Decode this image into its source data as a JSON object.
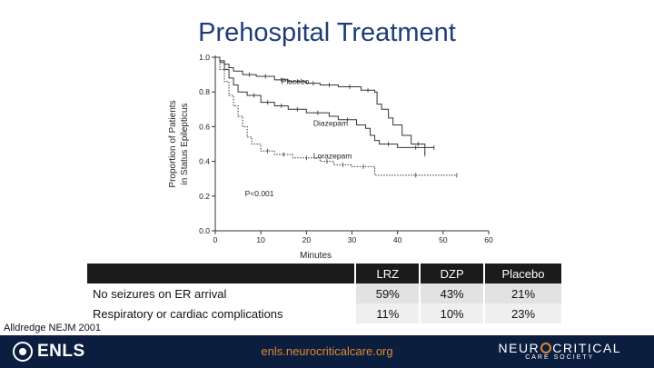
{
  "slide": {
    "title": "Prehospital Treatment"
  },
  "chart_data": {
    "type": "line",
    "subtype": "kaplan-meier",
    "xlabel": "Minutes",
    "ylabel_lines": [
      "Proportion of Patients",
      "in Status Epilepticus"
    ],
    "xlim": [
      0,
      60
    ],
    "ylim": [
      0,
      1.0
    ],
    "x_ticks": [
      0,
      10,
      20,
      30,
      40,
      50,
      60
    ],
    "y_ticks": [
      0.0,
      0.2,
      0.4,
      0.6,
      0.8,
      1.0
    ],
    "y_tick_labels": [
      "0.0",
      "0.2",
      "0.4",
      "0.6",
      "0.8",
      "1.0"
    ],
    "annotation": "P<0.001",
    "series": [
      {
        "name": "Placebo",
        "label": "Placebo",
        "color": "#333333",
        "steps": [
          [
            0,
            1.0
          ],
          [
            1,
            0.98
          ],
          [
            2,
            0.96
          ],
          [
            3,
            0.94
          ],
          [
            4,
            0.92
          ],
          [
            6,
            0.9
          ],
          [
            9,
            0.89
          ],
          [
            13,
            0.87
          ],
          [
            16,
            0.86
          ],
          [
            20,
            0.85
          ],
          [
            23,
            0.84
          ],
          [
            27,
            0.83
          ],
          [
            32,
            0.81
          ],
          [
            35,
            0.8
          ],
          [
            35.5,
            0.73
          ],
          [
            36.5,
            0.7
          ],
          [
            38,
            0.65
          ],
          [
            39,
            0.61
          ],
          [
            41,
            0.55
          ],
          [
            43,
            0.5
          ],
          [
            46,
            0.44
          ]
        ],
        "end_x": 46
      },
      {
        "name": "Diazepam",
        "label": "Diazepam",
        "color": "#333333",
        "steps": [
          [
            0,
            1.0
          ],
          [
            1,
            0.97
          ],
          [
            2,
            0.93
          ],
          [
            3,
            0.88
          ],
          [
            4,
            0.84
          ],
          [
            5,
            0.8
          ],
          [
            7,
            0.78
          ],
          [
            10,
            0.74
          ],
          [
            13,
            0.72
          ],
          [
            16,
            0.7
          ],
          [
            20,
            0.68
          ],
          [
            25,
            0.66
          ],
          [
            27,
            0.64
          ],
          [
            31,
            0.61
          ],
          [
            33,
            0.59
          ],
          [
            34,
            0.55
          ],
          [
            35,
            0.52
          ],
          [
            36,
            0.5
          ],
          [
            40,
            0.48
          ]
        ],
        "end_x": 48
      },
      {
        "name": "Lorazepam",
        "label": "Lorazepam",
        "color": "#333333",
        "dotted": true,
        "steps": [
          [
            0,
            1.0
          ],
          [
            1,
            0.93
          ],
          [
            2,
            0.86
          ],
          [
            3,
            0.78
          ],
          [
            4,
            0.72
          ],
          [
            5,
            0.66
          ],
          [
            6,
            0.6
          ],
          [
            7,
            0.54
          ],
          [
            8,
            0.5
          ],
          [
            10,
            0.46
          ],
          [
            13,
            0.44
          ],
          [
            17,
            0.42
          ],
          [
            23,
            0.4
          ],
          [
            26,
            0.38
          ],
          [
            30,
            0.37
          ],
          [
            35,
            0.32
          ]
        ],
        "end_x": 53
      }
    ]
  },
  "table": {
    "columns": [
      "LRZ",
      "DZP",
      "Placebo"
    ],
    "rows": [
      {
        "label": "No seizures on ER arrival",
        "values": [
          "59%",
          "43%",
          "21%"
        ]
      },
      {
        "label": "Respiratory or cardiac complications",
        "values": [
          "11%",
          "10%",
          "23%"
        ]
      }
    ]
  },
  "citation": "Alldredge NEJM 2001",
  "footer": {
    "left_logo": "ENLS",
    "url": "enls.neurocriticalcare.org",
    "right_logo_left": "NEUR",
    "right_logo_right": "CRITICAL",
    "right_logo_sub": "CARE SOCIETY"
  },
  "colors": {
    "title": "#1f3d7a",
    "footer_bg": "#0b1e3f",
    "footer_accent": "#e08a2b"
  }
}
